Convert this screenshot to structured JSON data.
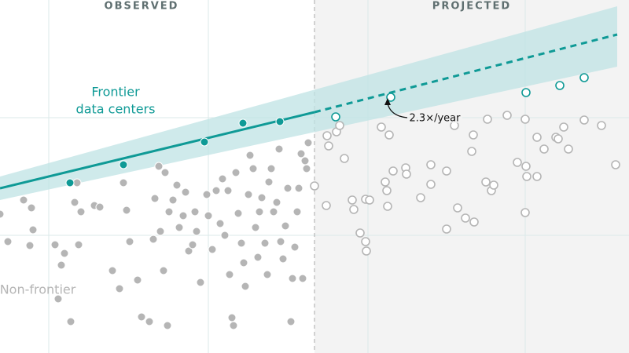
{
  "chart_data": {
    "type": "scatter",
    "section_labels": [
      "OBSERVED",
      "PROJECTED"
    ],
    "frontier_label": [
      "Frontier",
      "data centers"
    ],
    "nonfrontier_label": "Non-frontier",
    "annotation": "2.3×/year",
    "xlim": [
      0,
      800
    ],
    "ylim": [
      0,
      450
    ],
    "xticks": [
      62,
      265,
      468,
      668
    ],
    "yticks": [
      150,
      300
    ],
    "grid": true,
    "divider": 400,
    "series": [
      {
        "name": "Non-frontier",
        "color": "#b5b5b5",
        "marker": "filled",
        "x": [
          0,
          10,
          30,
          40,
          42,
          38,
          70,
          78,
          82,
          74,
          90,
          95,
          98,
          100,
          103,
          120,
          127,
          143,
          152,
          157,
          161,
          165,
          175,
          180,
          190,
          195,
          197,
          202,
          204,
          208,
          213,
          210,
          215,
          220,
          225,
          228,
          233,
          236,
          240,
          245,
          248,
          250,
          255,
          263,
          265,
          270,
          275,
          280,
          283,
          286,
          290,
          292,
          295,
          297,
          300,
          303,
          307,
          310,
          312,
          316,
          318,
          322,
          325,
          328,
          330,
          333,
          337,
          340,
          342,
          345,
          348,
          352,
          355,
          357,
          360,
          363,
          366,
          370,
          372,
          375,
          378,
          380,
          383,
          385,
          388,
          390,
          392
        ],
        "values": [
          177,
          142,
          195,
          185,
          157,
          137,
          138,
          112,
          127,
          69,
          40,
          192,
          217,
          138,
          180,
          188,
          186,
          105,
          82,
          217,
          182,
          142,
          93,
          46,
          40,
          145,
          197,
          238,
          155,
          105,
          35,
          230,
          180,
          195,
          214,
          160,
          175,
          205,
          130,
          138,
          180,
          155,
          90,
          202,
          175,
          132,
          207,
          165,
          222,
          150,
          207,
          100,
          45,
          35,
          230,
          178,
          140,
          115,
          85,
          202,
          252,
          235,
          160,
          122,
          180,
          198,
          140,
          100,
          218,
          235,
          180,
          192,
          260,
          142,
          120,
          162,
          210,
          40,
          95,
          135,
          180,
          210,
          254,
          95,
          245,
          235,
          268
        ]
      },
      {
        "color": "#b5b5b5",
        "marker": "open",
        "x": [
          400,
          415,
          416,
          418,
          428,
          432,
          438,
          448,
          450,
          458,
          465,
          466,
          465,
          470,
          485,
          490,
          492,
          493,
          495,
          500,
          516,
          517,
          535,
          548,
          548,
          568,
          568,
          578,
          582,
          592,
          600,
          602,
          603,
          618,
          620,
          625,
          628,
          645,
          658,
          668,
          669,
          670,
          668,
          683,
          683,
          692,
          707,
          710,
          717,
          723,
          743,
          765,
          783
        ],
        "values": [
          213,
          188,
          277,
          264,
          282,
          290,
          248,
          195,
          183,
          153,
          142,
          130,
          196,
          195,
          288,
          218,
          207,
          187,
          278,
          232,
          236,
          228,
          198,
          240,
          215,
          232,
          158,
          290,
          185,
          172,
          257,
          278,
          167,
          218,
          298,
          207,
          214,
          303,
          243,
          298,
          238,
          225,
          179,
          225,
          275,
          260,
          275,
          273,
          288,
          260,
          297,
          290,
          240
        ]
      },
      {
        "color": "#0f9a96",
        "marker": "filled",
        "x": [
          89,
          157,
          260,
          309,
          356
        ],
        "values": [
          217,
          240,
          269,
          293,
          295
        ]
      },
      {
        "color": "#0f9a96",
        "marker": "open",
        "x": [
          427,
          497,
          669,
          712,
          743
        ],
        "values": [
          301,
          326,
          332,
          341,
          351
        ]
      }
    ],
    "trend": {
      "color": "#0f9a96",
      "x": [
        0,
        400,
        785
      ],
      "values": [
        210,
        307,
        406
      ]
    },
    "band": {
      "color": "#bfe3e4",
      "x": [
        0,
        785
      ],
      "lower": [
        195,
        365
      ],
      "upper": [
        225,
        442
      ]
    }
  }
}
